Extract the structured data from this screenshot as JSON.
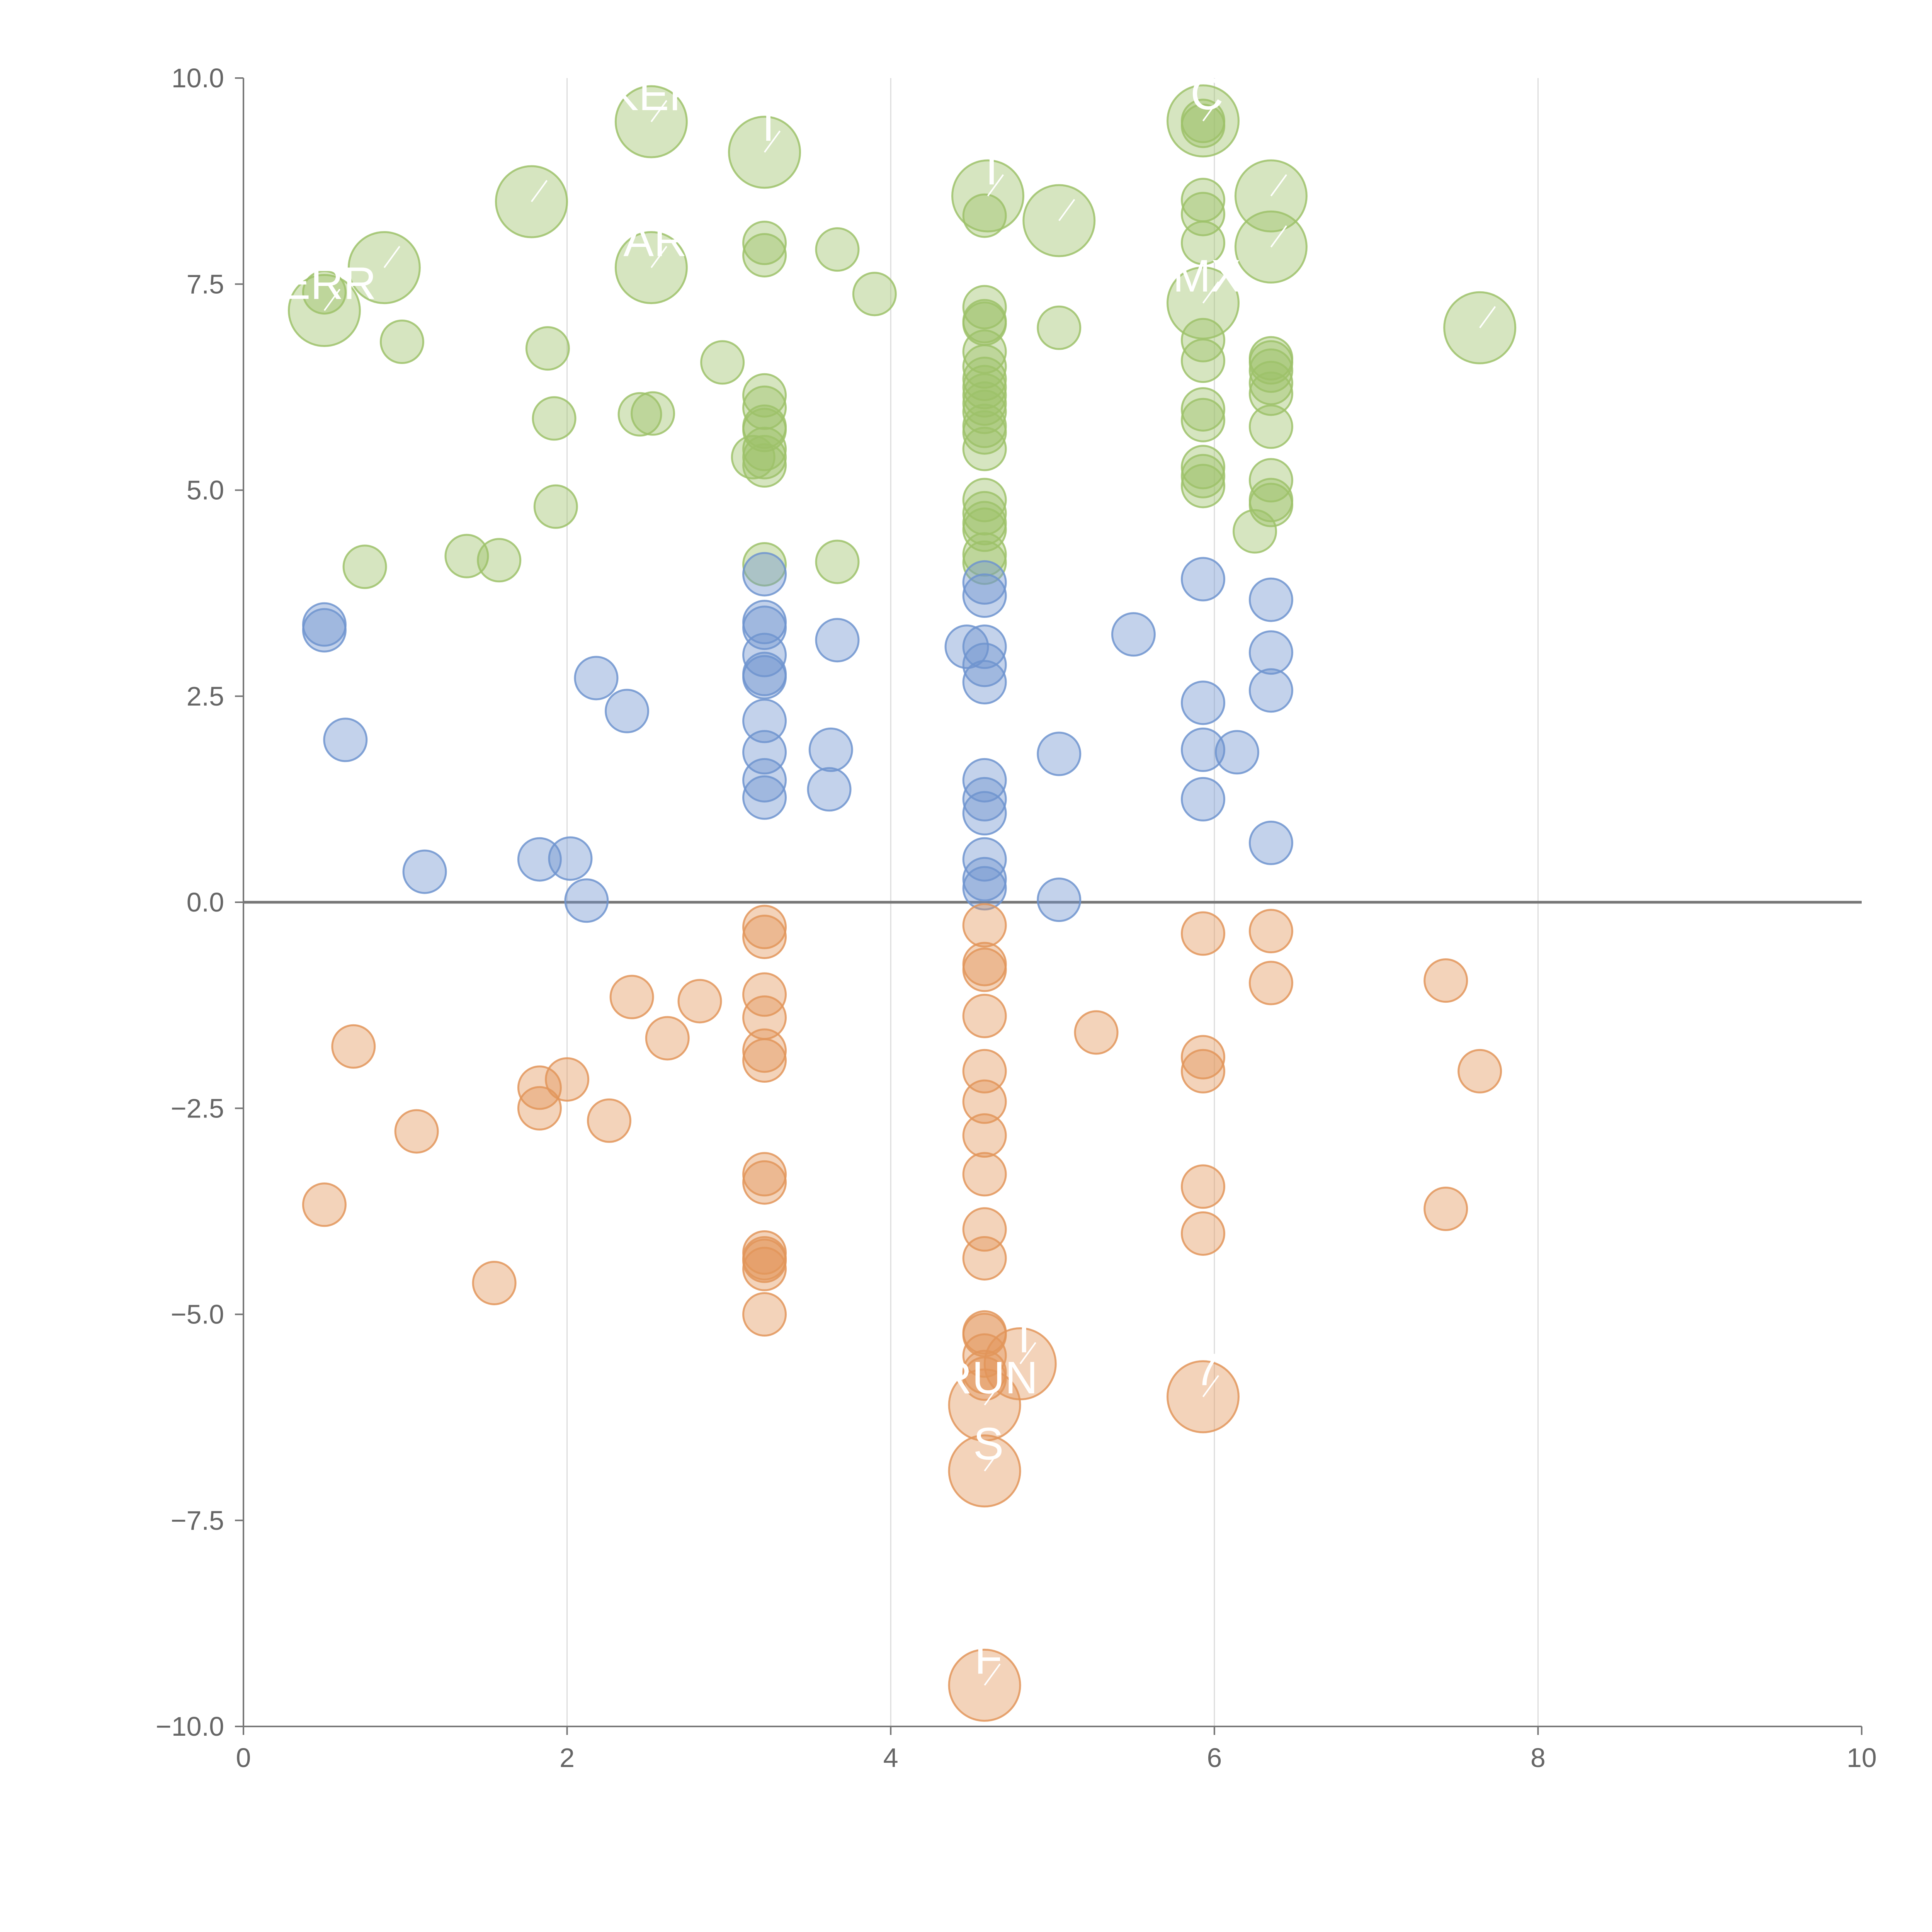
{
  "chart_data": {
    "type": "scatter",
    "title": "",
    "xlabel": "",
    "ylabel": "",
    "xlim": [
      0,
      10
    ],
    "ylim": [
      -10,
      10
    ],
    "grid": "vertical",
    "zero_line": true,
    "x_ticks": [
      0,
      2,
      4,
      6,
      8,
      10
    ],
    "x_tick_labels": [
      "0",
      "2",
      "4",
      "6",
      "8",
      "10"
    ],
    "y_ticks": [
      10,
      7.5,
      5,
      2.5,
      0,
      -2.5,
      -5,
      -7.5,
      -10
    ],
    "y_tick_labels": [
      "10.0",
      "7.5",
      "5.0",
      "2.5",
      "0.0",
      "−2.5",
      "−5.0",
      "−7.5",
      "−10.0"
    ],
    "colors": {
      "green": "#9dc26a",
      "blue": "#6f94cf",
      "orange": "#e2955a",
      "axis": "#777777",
      "grid": "#dcdcdc"
    },
    "series": [
      {
        "name": "green",
        "color": "#9dc26a",
        "points": [
          [
            0.5,
            7.4
          ],
          [
            0.98,
            6.8
          ],
          [
            1.88,
            6.72
          ],
          [
            1.92,
            5.87
          ],
          [
            1.93,
            4.8
          ],
          [
            0.75,
            4.07
          ],
          [
            1.38,
            4.2
          ],
          [
            1.58,
            4.15
          ],
          [
            2.45,
            5.92
          ],
          [
            2.53,
            5.93
          ],
          [
            2.96,
            6.55
          ],
          [
            3.22,
            8.0
          ],
          [
            3.22,
            7.85
          ],
          [
            3.67,
            7.92
          ],
          [
            3.9,
            7.38
          ],
          [
            3.22,
            6.15
          ],
          [
            3.22,
            6.0
          ],
          [
            3.22,
            5.77
          ],
          [
            3.22,
            5.73
          ],
          [
            3.22,
            5.5
          ],
          [
            3.22,
            5.4
          ],
          [
            3.15,
            5.4
          ],
          [
            3.22,
            5.3
          ],
          [
            3.22,
            4.1
          ],
          [
            3.67,
            4.13
          ],
          [
            4.58,
            8.33
          ],
          [
            4.58,
            7.22
          ],
          [
            4.58,
            7.05
          ],
          [
            4.58,
            7.02
          ],
          [
            4.58,
            6.68
          ],
          [
            4.58,
            6.5
          ],
          [
            4.58,
            6.35
          ],
          [
            4.58,
            6.25
          ],
          [
            4.58,
            6.15
          ],
          [
            4.58,
            6.05
          ],
          [
            4.58,
            5.95
          ],
          [
            4.58,
            5.78
          ],
          [
            4.58,
            5.7
          ],
          [
            4.58,
            5.5
          ],
          [
            4.58,
            4.88
          ],
          [
            4.58,
            4.72
          ],
          [
            4.58,
            4.6
          ],
          [
            4.58,
            4.52
          ],
          [
            4.58,
            4.22
          ],
          [
            4.58,
            4.12
          ],
          [
            5.04,
            6.97
          ],
          [
            5.93,
            9.48
          ],
          [
            5.93,
            9.42
          ],
          [
            5.93,
            8.52
          ],
          [
            5.93,
            8.35
          ],
          [
            5.93,
            8.0
          ],
          [
            5.93,
            6.82
          ],
          [
            5.93,
            6.57
          ],
          [
            5.93,
            5.98
          ],
          [
            5.93,
            5.85
          ],
          [
            5.93,
            5.28
          ],
          [
            5.93,
            5.17
          ],
          [
            5.93,
            5.05
          ],
          [
            6.35,
            6.6
          ],
          [
            6.35,
            6.55
          ],
          [
            6.35,
            6.45
          ],
          [
            6.35,
            6.3
          ],
          [
            6.35,
            6.17
          ],
          [
            6.35,
            5.77
          ],
          [
            6.35,
            5.12
          ],
          [
            6.35,
            4.88
          ],
          [
            6.35,
            4.82
          ],
          [
            6.25,
            4.5
          ]
        ]
      },
      {
        "name": "blue",
        "color": "#6f94cf",
        "points": [
          [
            0.5,
            3.37
          ],
          [
            0.5,
            3.3
          ],
          [
            0.63,
            1.97
          ],
          [
            1.12,
            0.37
          ],
          [
            1.83,
            0.52
          ],
          [
            2.02,
            0.53
          ],
          [
            2.12,
            0.02
          ],
          [
            2.18,
            2.72
          ],
          [
            2.37,
            2.32
          ],
          [
            3.22,
            3.98
          ],
          [
            3.22,
            3.4
          ],
          [
            3.22,
            3.33
          ],
          [
            3.22,
            3.0
          ],
          [
            3.22,
            2.77
          ],
          [
            3.22,
            2.73
          ],
          [
            3.22,
            2.2
          ],
          [
            3.22,
            1.82
          ],
          [
            3.22,
            1.48
          ],
          [
            3.22,
            1.27
          ],
          [
            3.62,
            1.37
          ],
          [
            3.63,
            1.85
          ],
          [
            3.67,
            3.18
          ],
          [
            4.47,
            3.1
          ],
          [
            4.58,
            3.88
          ],
          [
            4.58,
            3.72
          ],
          [
            4.58,
            3.1
          ],
          [
            4.58,
            2.88
          ],
          [
            4.58,
            2.67
          ],
          [
            4.58,
            1.48
          ],
          [
            4.58,
            1.25
          ],
          [
            4.58,
            1.08
          ],
          [
            4.58,
            0.52
          ],
          [
            4.58,
            0.28
          ],
          [
            4.58,
            0.17
          ],
          [
            5.04,
            1.8
          ],
          [
            5.04,
            0.03
          ],
          [
            5.5,
            3.25
          ],
          [
            5.93,
            3.92
          ],
          [
            5.93,
            2.42
          ],
          [
            5.93,
            1.85
          ],
          [
            5.93,
            1.25
          ],
          [
            6.14,
            1.82
          ],
          [
            6.35,
            3.67
          ],
          [
            6.35,
            3.03
          ],
          [
            6.35,
            2.57
          ],
          [
            6.35,
            0.72
          ]
        ]
      },
      {
        "name": "orange",
        "color": "#e2955a",
        "points": [
          [
            0.68,
            -1.75
          ],
          [
            0.5,
            -3.67
          ],
          [
            1.07,
            -2.78
          ],
          [
            1.55,
            -4.62
          ],
          [
            1.83,
            -2.25
          ],
          [
            1.83,
            -2.5
          ],
          [
            2.0,
            -2.15
          ],
          [
            2.26,
            -2.65
          ],
          [
            2.4,
            -1.15
          ],
          [
            2.62,
            -1.65
          ],
          [
            2.82,
            -1.2
          ],
          [
            3.22,
            -0.3
          ],
          [
            3.22,
            -0.42
          ],
          [
            3.22,
            -1.12
          ],
          [
            3.22,
            -1.4
          ],
          [
            3.22,
            -1.8
          ],
          [
            3.22,
            -1.92
          ],
          [
            3.22,
            -3.3
          ],
          [
            3.22,
            -3.4
          ],
          [
            3.22,
            -4.25
          ],
          [
            3.22,
            -4.32
          ],
          [
            3.22,
            -4.35
          ],
          [
            3.22,
            -4.45
          ],
          [
            3.22,
            -5.0
          ],
          [
            4.58,
            -0.28
          ],
          [
            4.58,
            -0.75
          ],
          [
            4.58,
            -0.82
          ],
          [
            4.58,
            -1.38
          ],
          [
            4.58,
            -2.05
          ],
          [
            4.58,
            -2.42
          ],
          [
            4.58,
            -2.83
          ],
          [
            4.58,
            -3.3
          ],
          [
            4.58,
            -3.97
          ],
          [
            4.58,
            -4.32
          ],
          [
            4.58,
            -5.22
          ],
          [
            4.58,
            -5.25
          ],
          [
            4.58,
            -5.5
          ],
          [
            4.58,
            -5.7
          ],
          [
            4.58,
            -5.78
          ],
          [
            5.27,
            -1.58
          ],
          [
            5.93,
            -0.38
          ],
          [
            5.93,
            -1.88
          ],
          [
            5.93,
            -2.05
          ],
          [
            5.93,
            -3.45
          ],
          [
            5.93,
            -4.02
          ],
          [
            6.35,
            -0.35
          ],
          [
            6.35,
            -0.98
          ],
          [
            7.43,
            -0.95
          ],
          [
            7.43,
            -3.72
          ],
          [
            7.64,
            -2.05
          ]
        ]
      }
    ],
    "labeled_points": [
      {
        "series": "green",
        "x": 0.5,
        "y": 7.18,
        "label": "ERR"
      },
      {
        "series": "green",
        "x": 0.87,
        "y": 7.7,
        "label": ""
      },
      {
        "series": "green",
        "x": 1.78,
        "y": 8.5,
        "label": ""
      },
      {
        "series": "green",
        "x": 2.52,
        "y": 9.47,
        "label": "KER"
      },
      {
        "series": "green",
        "x": 2.52,
        "y": 7.7,
        "label": "AR"
      },
      {
        "series": "green",
        "x": 3.22,
        "y": 9.1,
        "label": "T"
      },
      {
        "series": "green",
        "x": 4.6,
        "y": 8.57,
        "label": "T"
      },
      {
        "series": "green",
        "x": 5.04,
        "y": 8.27,
        "label": ""
      },
      {
        "series": "green",
        "x": 5.93,
        "y": 9.48,
        "label": "C"
      },
      {
        "series": "green",
        "x": 5.93,
        "y": 7.27,
        "label": "MX"
      },
      {
        "series": "green",
        "x": 6.35,
        "y": 8.57,
        "label": ""
      },
      {
        "series": "green",
        "x": 6.35,
        "y": 7.95,
        "label": ""
      },
      {
        "series": "green",
        "x": 7.64,
        "y": 6.97,
        "label": ""
      },
      {
        "series": "orange",
        "x": 4.8,
        "y": -5.6,
        "label": "T"
      },
      {
        "series": "orange",
        "x": 4.58,
        "y": -6.1,
        "label": "RUN"
      },
      {
        "series": "orange",
        "x": 4.58,
        "y": -6.9,
        "label": "S"
      },
      {
        "series": "orange",
        "x": 5.93,
        "y": -6.0,
        "label": "7"
      },
      {
        "series": "orange",
        "x": 4.58,
        "y": -9.5,
        "label": "F"
      }
    ]
  }
}
